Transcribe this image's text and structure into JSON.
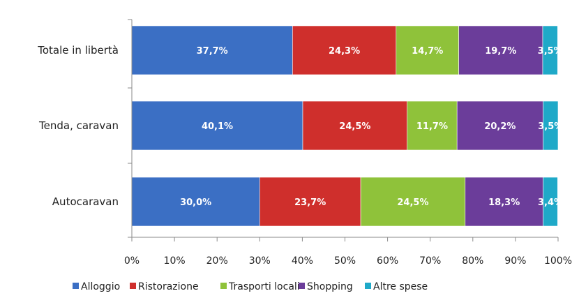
{
  "chart_data": {
    "type": "bar",
    "orientation": "horizontal",
    "stacked": true,
    "percent_stacked": true,
    "categories": [
      "Totale in libertà",
      "Tenda, caravan",
      "Autocaravan"
    ],
    "series": [
      {
        "name": "Alloggio",
        "color": "#3b6fc4",
        "values": [
          37.7,
          40.1,
          30.0
        ],
        "labels": [
          "37,7%",
          "40,1%",
          "30,0%"
        ]
      },
      {
        "name": "Ristorazione",
        "color": "#cf2f2c",
        "values": [
          24.3,
          24.5,
          23.7
        ],
        "labels": [
          "24,3%",
          "24,5%",
          "23,7%"
        ]
      },
      {
        "name": "Trasporti locali",
        "color": "#8fc23a",
        "values": [
          14.7,
          11.7,
          24.5
        ],
        "labels": [
          "14,7%",
          "11,7%",
          "24,5%"
        ]
      },
      {
        "name": "Shopping",
        "color": "#6b3d9a",
        "values": [
          19.7,
          20.2,
          18.3
        ],
        "labels": [
          "19,7%",
          "20,2%",
          "18,3%"
        ]
      },
      {
        "name": "Altre spese",
        "color": "#1fa9c8",
        "values": [
          3.5,
          3.5,
          3.4
        ],
        "labels": [
          "3,5%",
          "3,5%",
          "3,4%"
        ]
      }
    ],
    "xlim": [
      0,
      100
    ],
    "ticks": [
      "0%",
      "10%",
      "20%",
      "30%",
      "40%",
      "50%",
      "60%",
      "70%",
      "80%",
      "90%",
      "100%"
    ],
    "grid": false,
    "legend_position": "bottom"
  }
}
